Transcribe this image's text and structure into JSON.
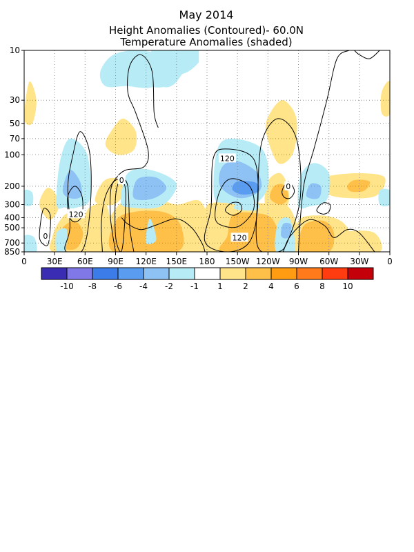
{
  "chart_data": {
    "type": "heatmap",
    "title_lines": [
      "May 2014",
      "Height Anomalies (Contoured)- 60.0N",
      "Temperature Anomalies (shaded)"
    ],
    "x_tick_labels": [
      "0",
      "30E",
      "60E",
      "90E",
      "120E",
      "150E",
      "180",
      "150W",
      "120W",
      "90W",
      "60W",
      "30W",
      "0"
    ],
    "x_ticks_deg": [
      0,
      30,
      60,
      90,
      120,
      150,
      180,
      210,
      240,
      270,
      300,
      330,
      360
    ],
    "y_tick_labels": [
      "10",
      "30",
      "50",
      "70",
      "100",
      "200",
      "300",
      "400",
      "500",
      "700",
      "850"
    ],
    "y_ticks_hpa": [
      10,
      30,
      50,
      70,
      100,
      200,
      300,
      400,
      500,
      700,
      850
    ],
    "y_scale": "log",
    "x_range": [
      0,
      360
    ],
    "y_range": [
      10,
      850
    ],
    "grid": true,
    "colorbar": {
      "labels": [
        "-10",
        "-8",
        "-6",
        "-4",
        "-2",
        "-1",
        "1",
        "2",
        "4",
        "6",
        "8",
        "10"
      ],
      "colors": [
        "#3a2db3",
        "#8178e8",
        "#3c7ce8",
        "#5a9df0",
        "#8ec2f5",
        "#b7ecf7",
        "#ffffff",
        "#ffe48a",
        "#ffc04a",
        "#ff9c12",
        "#ff7a1a",
        "#ff3c0f",
        "#c4000b"
      ]
    },
    "contour_labels": [
      {
        "text": "120",
        "lon": 51,
        "p": 370
      },
      {
        "text": "0",
        "lon": 21,
        "p": 600
      },
      {
        "text": "0",
        "lon": 96,
        "p": 175
      },
      {
        "text": "120",
        "lon": 200,
        "p": 108
      },
      {
        "text": "120",
        "lon": 212,
        "p": 620
      },
      {
        "text": "0",
        "lon": 260,
        "p": 200
      }
    ]
  }
}
